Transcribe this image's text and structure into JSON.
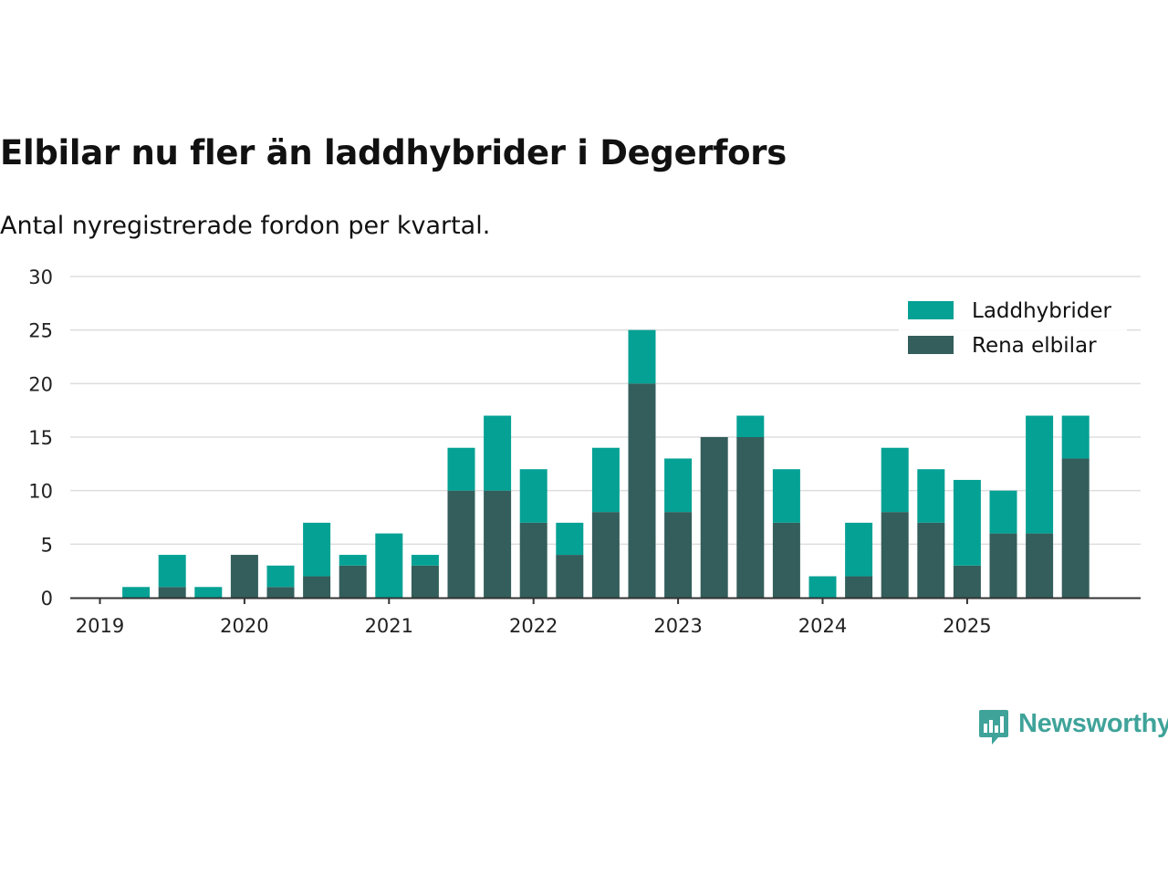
{
  "title": "Elbilar nu fler än laddhybrider i Degerfors",
  "subtitle": "Antal nyregistrerade fordon per kvartal.",
  "brand": {
    "name": "Newsworthy",
    "color": "#3fa39a"
  },
  "colors": {
    "laddhybrider": "#05a195",
    "rena_elbilar": "#335e5b",
    "grid": "#dddddd",
    "axis": "#333333"
  },
  "chart_data": {
    "type": "bar",
    "stacked": true,
    "categories": [
      "2019 Q1",
      "2019 Q2",
      "2019 Q3",
      "2019 Q4",
      "2020 Q1",
      "2020 Q2",
      "2020 Q3",
      "2020 Q4",
      "2021 Q1",
      "2021 Q2",
      "2021 Q3",
      "2021 Q4",
      "2022 Q1",
      "2022 Q2",
      "2022 Q3",
      "2022 Q4",
      "2023 Q1",
      "2023 Q2",
      "2023 Q3",
      "2023 Q4",
      "2024 Q1",
      "2024 Q2",
      "2024 Q3",
      "2024 Q4",
      "2025 Q1",
      "2025 Q2",
      "2025 Q3",
      "2025 Q4"
    ],
    "series": [
      {
        "name": "Rena elbilar",
        "values": [
          0,
          0,
          1,
          0,
          4,
          1,
          2,
          3,
          0,
          3,
          10,
          10,
          7,
          4,
          8,
          20,
          8,
          15,
          15,
          7,
          0,
          2,
          8,
          7,
          3,
          6,
          6,
          13
        ]
      },
      {
        "name": "Laddhybrider",
        "values": [
          0,
          1,
          3,
          1,
          0,
          2,
          5,
          1,
          6,
          1,
          4,
          7,
          5,
          3,
          6,
          5,
          5,
          0,
          2,
          5,
          2,
          5,
          6,
          5,
          8,
          4,
          11,
          4
        ]
      }
    ],
    "x_ticks": [
      "2019",
      "2020",
      "2021",
      "2022",
      "2023",
      "2024",
      "2025"
    ],
    "y_ticks": [
      0,
      5,
      10,
      15,
      20,
      25,
      30
    ],
    "ylim": [
      0,
      30
    ],
    "legend": [
      "Laddhybrider",
      "Rena elbilar"
    ],
    "legend_position": "top-right",
    "xlabel": "",
    "ylabel": ""
  }
}
